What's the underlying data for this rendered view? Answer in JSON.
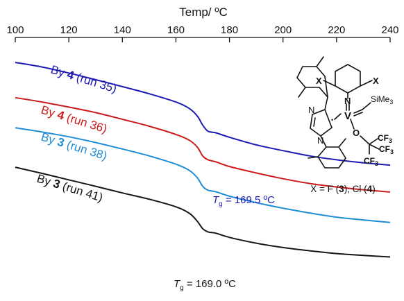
{
  "chart_data": {
    "type": "line",
    "xlabel": "Temp/ ºC",
    "xlim": [
      100,
      240
    ],
    "x_ticks": [
      "100",
      "120",
      "140",
      "160",
      "180",
      "200",
      "220",
      "240"
    ],
    "y_axis_shown": false,
    "grid": false,
    "series": [
      {
        "color": "#1c1ab2",
        "label_parts": [
          {
            "text": "By ",
            "bold": false,
            "color": "#1c1ab2"
          },
          {
            "text": "4",
            "bold": true,
            "color": "#1c1ab2"
          },
          {
            "text": " (run 35)",
            "bold": false,
            "color": "#1c1ab2"
          }
        ],
        "points": [
          [
            100,
            0.0
          ],
          [
            110,
            2.0
          ],
          [
            120,
            4.6
          ],
          [
            130,
            7.5
          ],
          [
            140,
            10.5
          ],
          [
            150,
            13.6
          ],
          [
            160,
            17.2
          ],
          [
            165,
            20.0
          ],
          [
            168,
            23.3
          ],
          [
            170,
            27.2
          ],
          [
            172,
            29.9
          ],
          [
            175,
            30.6
          ],
          [
            180,
            32.5
          ],
          [
            190,
            35.8
          ],
          [
            200,
            38.3
          ],
          [
            210,
            40.6
          ],
          [
            220,
            42.3
          ],
          [
            230,
            43.6
          ],
          [
            240,
            44.6
          ]
        ]
      },
      {
        "color": "#cc1a1a",
        "label_parts": [
          {
            "text": "By ",
            "bold": false,
            "color": "#cc1a1a"
          },
          {
            "text": "4",
            "bold": true,
            "color": "#cc1a1a"
          },
          {
            "text": " (run 36)",
            "bold": false,
            "color": "#cc1a1a"
          }
        ],
        "points": [
          [
            100,
            15.3
          ],
          [
            110,
            17.2
          ],
          [
            120,
            19.4
          ],
          [
            130,
            21.8
          ],
          [
            140,
            24.7
          ],
          [
            150,
            27.7
          ],
          [
            160,
            31.3
          ],
          [
            165,
            33.8
          ],
          [
            168,
            36.8
          ],
          [
            170,
            40.6
          ],
          [
            172,
            42.3
          ],
          [
            175,
            43.2
          ],
          [
            180,
            45.2
          ],
          [
            190,
            48.0
          ],
          [
            200,
            50.5
          ],
          [
            210,
            52.6
          ],
          [
            220,
            54.1
          ],
          [
            230,
            55.3
          ],
          [
            240,
            56.3
          ]
        ]
      },
      {
        "color": "#1f8cd6",
        "label_parts": [
          {
            "text": "By ",
            "bold": false,
            "color": "#1f8cd6"
          },
          {
            "text": "3",
            "bold": true,
            "color": "#1f8cd6"
          },
          {
            "text": " (run 38)",
            "bold": false,
            "color": "#1f8cd6"
          }
        ],
        "points": [
          [
            100,
            28.4
          ],
          [
            110,
            30.2
          ],
          [
            120,
            32.3
          ],
          [
            130,
            34.8
          ],
          [
            140,
            37.6
          ],
          [
            150,
            40.6
          ],
          [
            160,
            44.2
          ],
          [
            165,
            46.9
          ],
          [
            168,
            50.1
          ],
          [
            170,
            53.8
          ],
          [
            172,
            55.5
          ],
          [
            175,
            56.2
          ],
          [
            180,
            58.1
          ],
          [
            190,
            60.9
          ],
          [
            200,
            63.3
          ],
          [
            210,
            65.4
          ],
          [
            220,
            67.2
          ],
          [
            230,
            68.4
          ],
          [
            240,
            69.5
          ]
        ]
      },
      {
        "color": "#161616",
        "label_parts": [
          {
            "text": "By ",
            "bold": false,
            "color": "#161616"
          },
          {
            "text": "3",
            "bold": true,
            "color": "#161616"
          },
          {
            "text": " (run 41)",
            "bold": false,
            "color": "#161616"
          }
        ],
        "points": [
          [
            100,
            45.5
          ],
          [
            110,
            48.2
          ],
          [
            120,
            51.0
          ],
          [
            130,
            53.8
          ],
          [
            140,
            56.7
          ],
          [
            150,
            59.4
          ],
          [
            160,
            62.7
          ],
          [
            165,
            65.5
          ],
          [
            168,
            69.0
          ],
          [
            170,
            72.2
          ],
          [
            172,
            73.6
          ],
          [
            175,
            74.2
          ],
          [
            180,
            76.0
          ],
          [
            190,
            78.5
          ],
          [
            200,
            80.4
          ],
          [
            210,
            81.8
          ],
          [
            220,
            83.0
          ],
          [
            230,
            83.8
          ],
          [
            240,
            84.5
          ]
        ]
      }
    ],
    "annotations": [
      {
        "prefix": "T",
        "sub": "g",
        "suffix": " = 169.5 ºC",
        "color": "#1c1ab2"
      },
      {
        "prefix": "T",
        "sub": "g",
        "suffix": " = 169.0 ºC",
        "color": "#161616"
      }
    ]
  },
  "structure": {
    "halogen_top_left": "X",
    "halogen_top_right": "X",
    "nitrogen_imido": "N",
    "vanadium": "V",
    "radical_dot": "•",
    "silyl": "SiMe",
    "silyl_sub": "3",
    "nitrogen_ring_top": "N",
    "nitrogen_ring_bottom": "N",
    "oxygen": "O",
    "cf3_1": "CF",
    "cf3_1_sub": "3",
    "cf3_2": "CF",
    "cf3_2_sub": "3",
    "cf3_3": "CF",
    "cf3_3_sub": "3",
    "caption_parts": [
      {
        "text": "X = F (",
        "bold": false
      },
      {
        "text": "3",
        "bold": true
      },
      {
        "text": "), Cl (",
        "bold": false
      },
      {
        "text": "4",
        "bold": true
      },
      {
        "text": ")",
        "bold": false
      }
    ]
  }
}
